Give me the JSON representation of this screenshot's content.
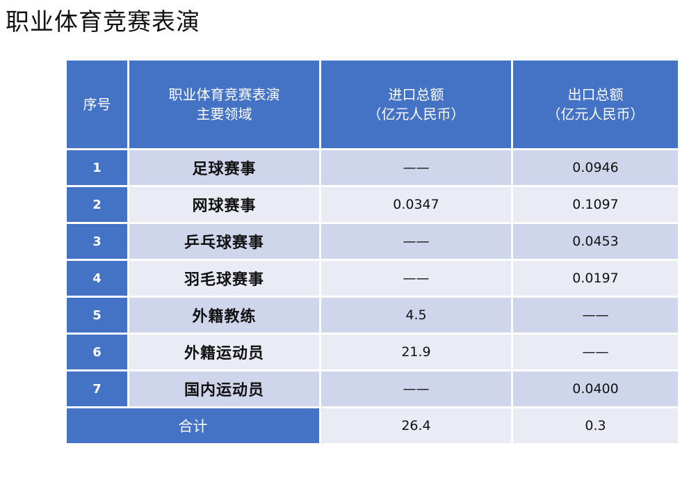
{
  "title": "职业体育竞赛表演",
  "table": {
    "headers": {
      "seq": "序号",
      "domain_line1": "职业体育竞赛表演",
      "domain_line2": "主要领域",
      "import_line1": "进口总额",
      "import_line2": "（亿元人民币）",
      "export_line1": "出口总额",
      "export_line2": "（亿元人民币）"
    },
    "rows": [
      {
        "seq": "1",
        "domain": "足球赛事",
        "import": "——",
        "export": "0.0946"
      },
      {
        "seq": "2",
        "domain": "网球赛事",
        "import": "0.0347",
        "export": "0.1097"
      },
      {
        "seq": "3",
        "domain": "乒乓球赛事",
        "import": "——",
        "export": "0.0453"
      },
      {
        "seq": "4",
        "domain": "羽毛球赛事",
        "import": "——",
        "export": "0.0197"
      },
      {
        "seq": "5",
        "domain": "外籍教练",
        "import": "4.5",
        "export": "——"
      },
      {
        "seq": "6",
        "domain": "外籍运动员",
        "import": "21.9",
        "export": "——"
      },
      {
        "seq": "7",
        "domain": "国内运动员",
        "import": "——",
        "export": "0.0400"
      }
    ],
    "total": {
      "label": "合计",
      "import": "26.4",
      "export": "0.3"
    }
  },
  "colors": {
    "header_blue": "#4472c4",
    "row_dark": "#cfd5ea",
    "row_light": "#e9ebf5"
  }
}
